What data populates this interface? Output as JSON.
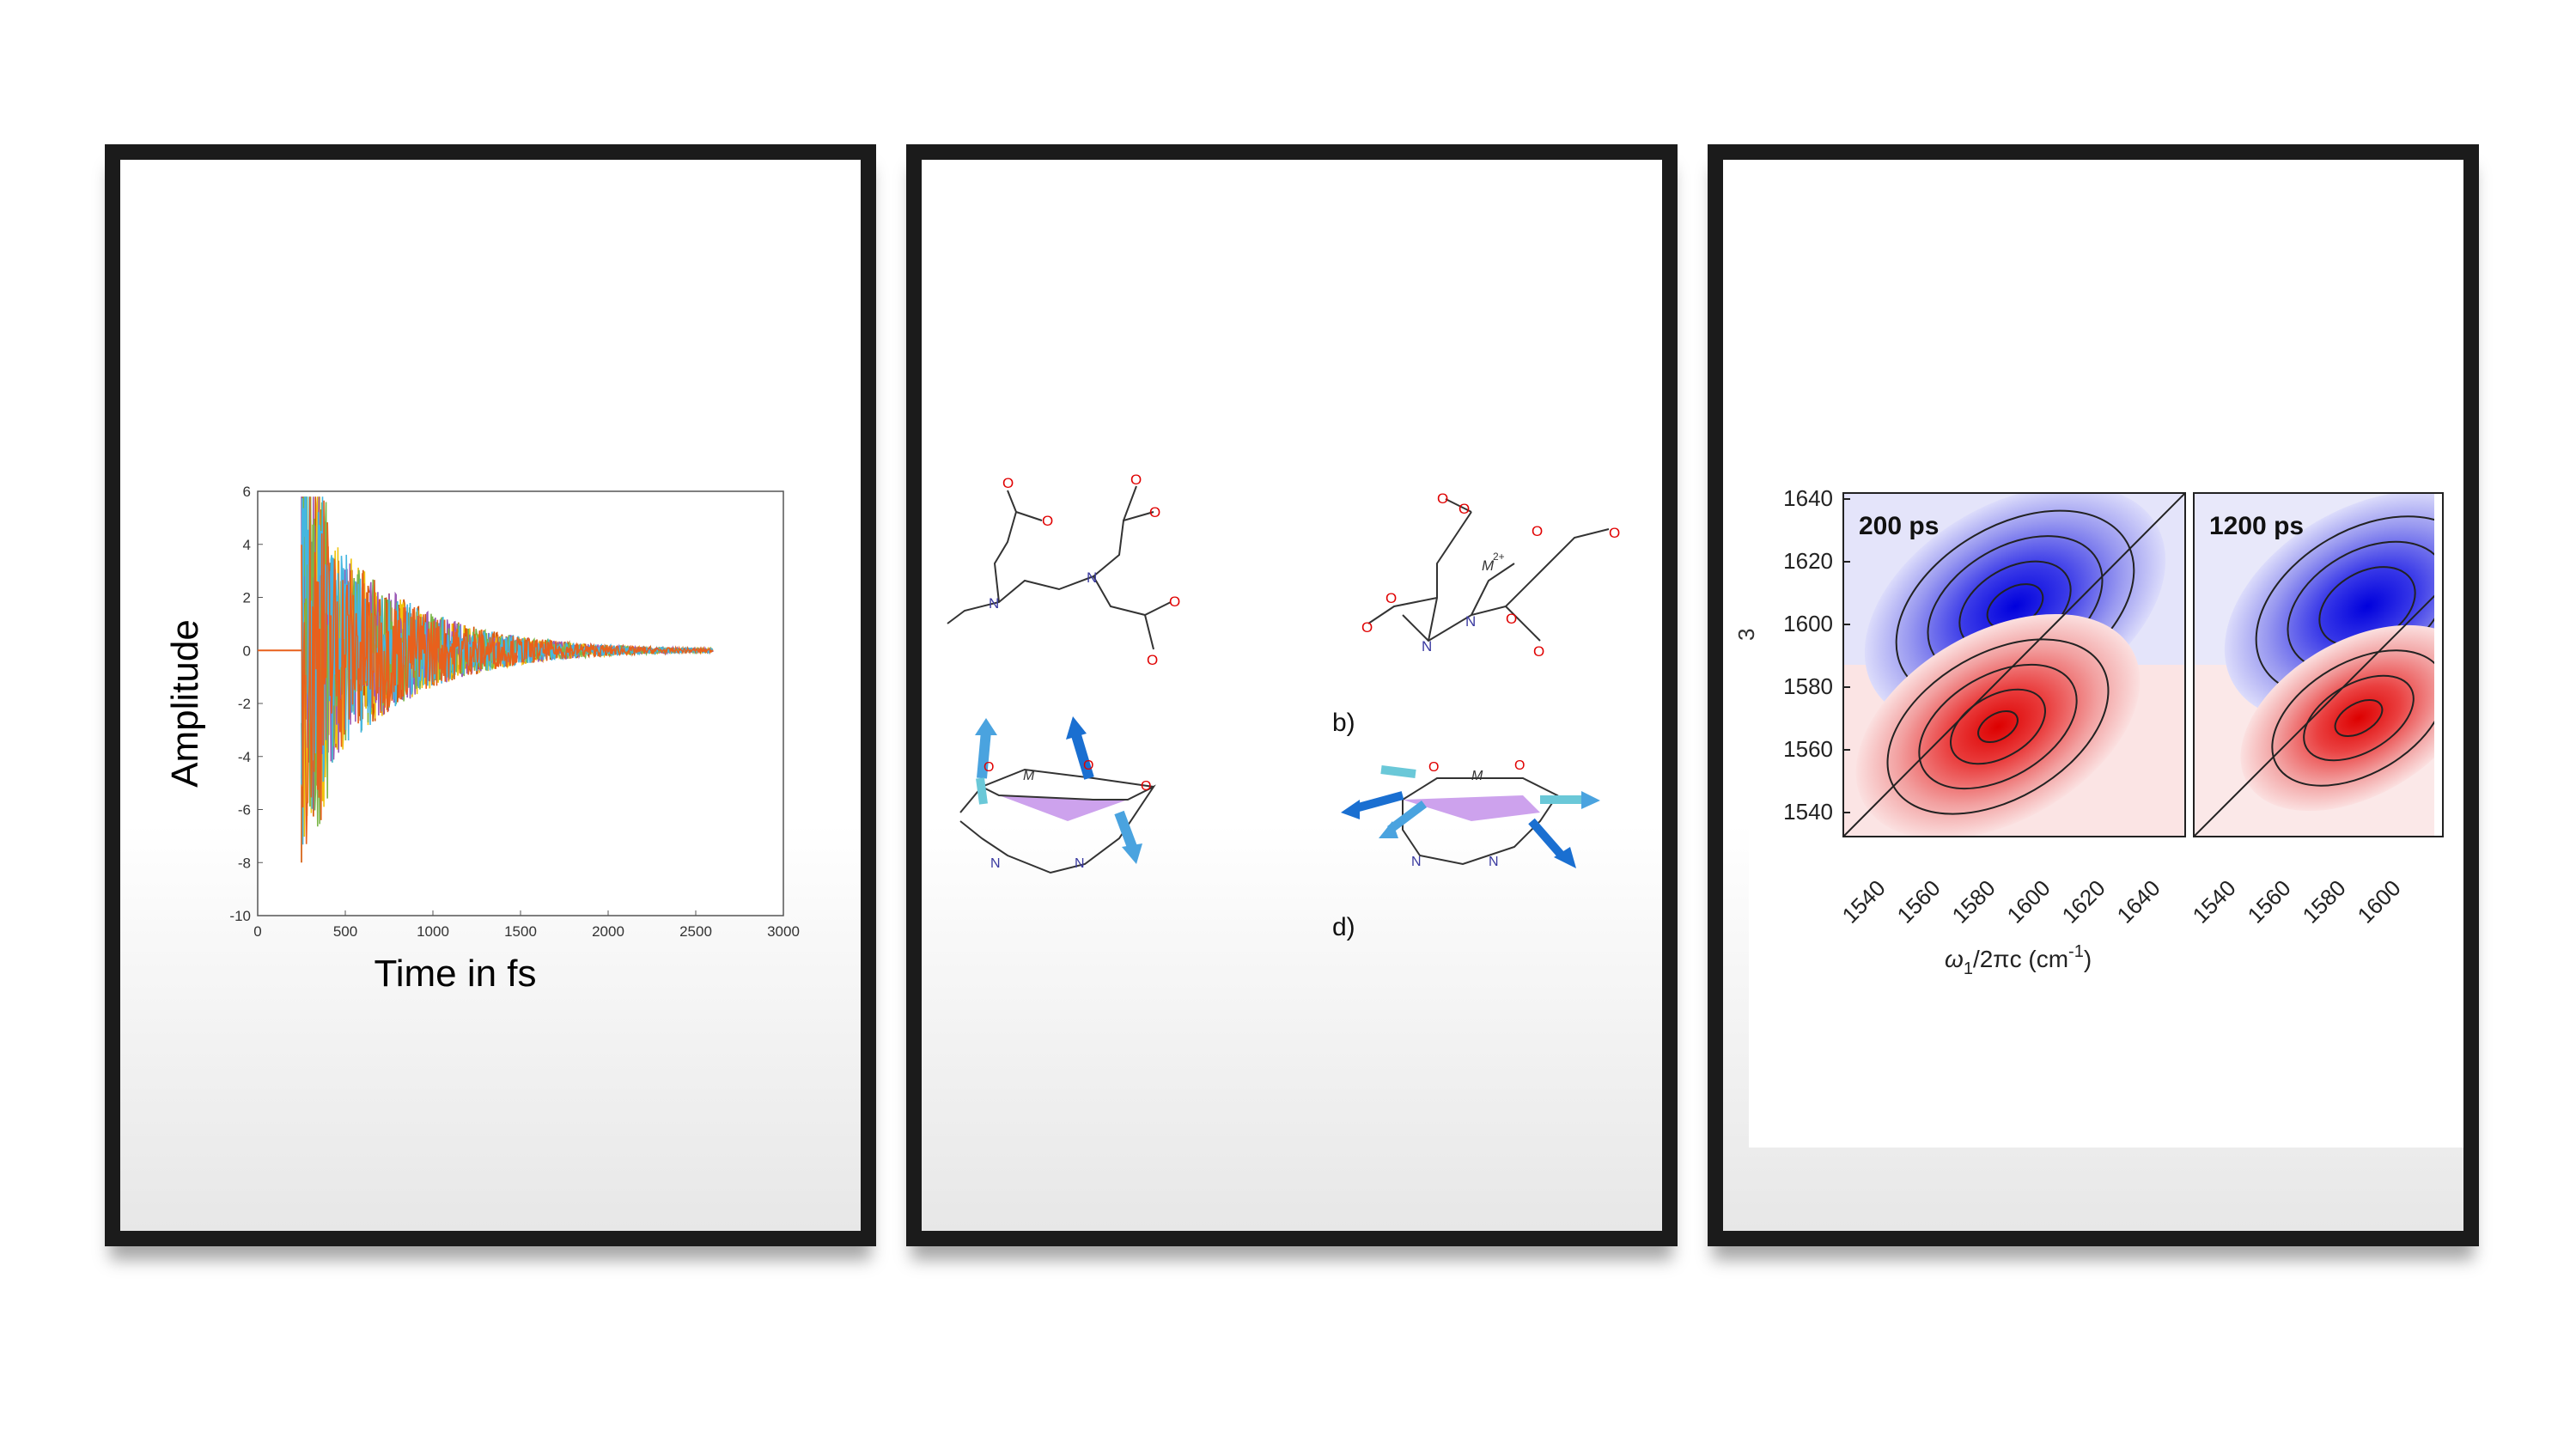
{
  "panel1": {
    "title": "",
    "ylabel": "Amplitude",
    "xlabel": "Time in fs",
    "chart_data": {
      "type": "line",
      "title": "",
      "xlabel": "Time in fs",
      "ylabel": "Amplitude",
      "xlim": [
        0,
        3000
      ],
      "ylim": [
        -10,
        6
      ],
      "xticks": [
        "0",
        "500",
        "1000",
        "1500",
        "2000",
        "2500",
        "3000"
      ],
      "yticks": [
        "6",
        "4",
        "2",
        "0",
        "-2",
        "-4",
        "-6",
        "-8",
        "-10"
      ],
      "signal_start": 250,
      "signal_end": 2600,
      "peak_max": 5.8,
      "peak_min": -9.3,
      "series_colors": [
        "#e8601c",
        "#45b6e0",
        "#7ab648",
        "#9b59b6",
        "#f1c40f",
        "#d35400"
      ]
    }
  },
  "panel2": {
    "label_b": "b)",
    "label_d": "d)",
    "atoms": {
      "N": "N",
      "O": "O",
      "Ominus": "O",
      "charge": "−",
      "M": "M",
      "M_charge": "2+"
    }
  },
  "panel3": {
    "chart_data": {
      "type": "heatmap",
      "subplots": [
        {
          "label": "200 ps",
          "xticks": [
            "1540",
            "1560",
            "1580",
            "1600",
            "1620",
            "1640"
          ]
        },
        {
          "label": "1200 ps",
          "xticks": [
            "1540",
            "1560",
            "1580",
            "1600"
          ]
        }
      ],
      "yticks": [
        "1640",
        "1620",
        "1600",
        "1580",
        "1560",
        "1540"
      ],
      "xlabel": "ω1/2πc (cm-1)",
      "xlabel_main": "ω",
      "xlabel_sub": "1",
      "xlabel_rest": "/2πc (cm",
      "xlabel_sup": "-1",
      "xlabel_close": ")",
      "ylabel_fragment": "3",
      "negative_peak": {
        "x": 1588,
        "y": 1604,
        "color": "#1010e0"
      },
      "positive_peak": {
        "x": 1588,
        "y": 1571,
        "color": "#e01818"
      }
    }
  }
}
